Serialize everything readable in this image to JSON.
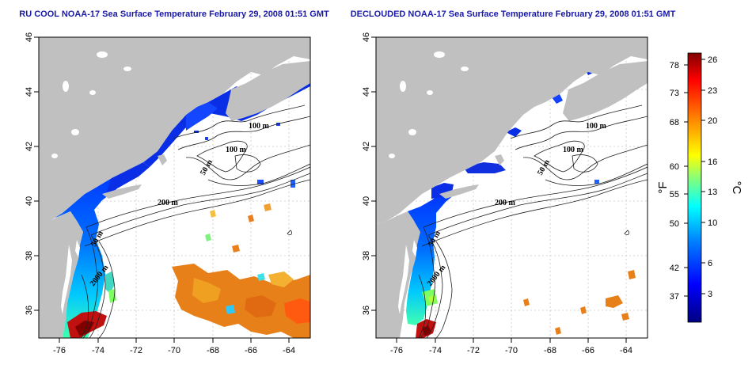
{
  "panels": [
    {
      "title": "RU COOL NOAA-17 Sea Surface Temperature February 29, 2008 01:51 GMT",
      "x_ticks": [
        "-76",
        "-74",
        "-72",
        "-70",
        "-68",
        "-66",
        "-64"
      ],
      "y_ticks": [
        "46",
        "44",
        "42",
        "40",
        "38",
        "36"
      ],
      "contour_labels": [
        "100 m",
        "100 m",
        "50 m",
        "200 m",
        "50 m",
        "2000 m"
      ]
    },
    {
      "title": "DECLOUDED NOAA-17 Sea Surface Temperature February 29, 2008 01:51 GMT",
      "x_ticks": [
        "-76",
        "-74",
        "-72",
        "-70",
        "-68",
        "-66",
        "-64"
      ],
      "y_ticks": [
        "46",
        "44",
        "42",
        "40",
        "38",
        "36"
      ],
      "contour_labels": [
        "100 m",
        "100 m",
        "50 m",
        "200 m",
        "50 m",
        "2000 m"
      ]
    }
  ],
  "colorbar": {
    "fahrenheit_label": "°F",
    "celsius_label": "°C",
    "fahrenheit_ticks": [
      "78",
      "73",
      "68",
      "60",
      "55",
      "50",
      "42",
      "37"
    ],
    "celsius_ticks": [
      "26",
      "23",
      "20",
      "16",
      "13",
      "10",
      "6",
      "3"
    ],
    "min_c": 0,
    "max_c": 27,
    "colors": [
      "#000080",
      "#0000ff",
      "#0080ff",
      "#00ffff",
      "#80ff80",
      "#ffff00",
      "#ff8000",
      "#ff0000",
      "#800000"
    ]
  },
  "colors": {
    "land": "#c0c0c0",
    "grid": "#c8c8c8",
    "title": "#1a1aa8"
  }
}
